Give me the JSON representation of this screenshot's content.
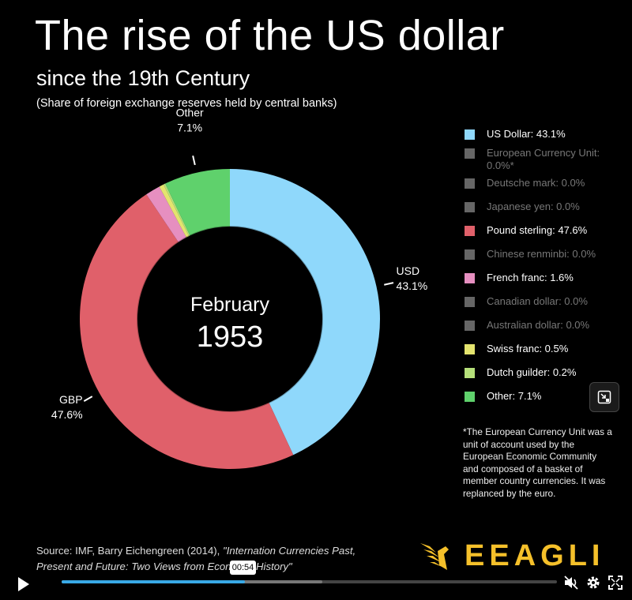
{
  "header": {
    "title": "The rise of the US dollar",
    "subtitle": "since the 19th Century",
    "note": "(Share of foreign exchange reserves held by central banks)"
  },
  "center": {
    "month": "February",
    "year": "1953"
  },
  "chart_data": {
    "type": "donut",
    "title": "The rise of the US dollar",
    "subtitle": "since the 19th Century",
    "order_clockwise_from_top": [
      "US Dollar",
      "Pound sterling",
      "French franc",
      "Swiss franc",
      "Dutch guilder",
      "Other"
    ],
    "series": [
      {
        "name": "US Dollar",
        "value": 43.1,
        "color": "#8fd8fb",
        "legend": "US Dollar: 43.1%",
        "active": true
      },
      {
        "name": "European Currency Unit",
        "value": 0.0,
        "color": "#666666",
        "legend": "European Currency Unit: 0.0%*",
        "active": false
      },
      {
        "name": "Deutsche mark",
        "value": 0.0,
        "color": "#666666",
        "legend": "Deutsche mark: 0.0%",
        "active": false
      },
      {
        "name": "Japanese yen",
        "value": 0.0,
        "color": "#666666",
        "legend": "Japanese yen: 0.0%",
        "active": false
      },
      {
        "name": "Pound sterling",
        "value": 47.6,
        "color": "#e0606a",
        "legend": "Pound sterling: 47.6%",
        "active": true
      },
      {
        "name": "Chinese renminbi",
        "value": 0.0,
        "color": "#666666",
        "legend": "Chinese renminbi: 0.0%",
        "active": false
      },
      {
        "name": "French franc",
        "value": 1.6,
        "color": "#e68fc0",
        "legend": "French franc: 1.6%",
        "active": true
      },
      {
        "name": "Canadian dollar",
        "value": 0.0,
        "color": "#666666",
        "legend": "Canadian dollar: 0.0%",
        "active": false
      },
      {
        "name": "Australian dollar",
        "value": 0.0,
        "color": "#666666",
        "legend": "Australian dollar: 0.0%",
        "active": false
      },
      {
        "name": "Swiss franc",
        "value": 0.5,
        "color": "#e4e46e",
        "legend": "Swiss franc: 0.5%",
        "active": true
      },
      {
        "name": "Dutch guilder",
        "value": 0.2,
        "color": "#b5e07a",
        "legend": "Dutch guilder: 0.2%",
        "active": true
      },
      {
        "name": "Other",
        "value": 7.1,
        "color": "#5fd16c",
        "legend": "Other: 7.1%",
        "active": true
      }
    ],
    "callouts": [
      {
        "series": "US Dollar",
        "label": "USD",
        "value_label": "43.1%"
      },
      {
        "series": "Pound sterling",
        "label": "GBP",
        "value_label": "47.6%"
      },
      {
        "series": "Other",
        "label": "Other",
        "value_label": "7.1%"
      }
    ]
  },
  "footnote": "*The European Currency Unit was a unit of account used by the European Economic Community and composed of a basket of member country currencies. It was replanced by the euro.",
  "source": {
    "line1_plain": "Source: IMF, Barry Eichengreen (2014), ",
    "line1_italic": "\"Internation Currencies Past,",
    "line2_italic": "Present and Future: Two Views from Economic History\""
  },
  "brand": {
    "name": "EEAGLI",
    "color": "#f5c02a"
  },
  "player": {
    "time_tooltip": "00:54",
    "progress": 0.37,
    "buffered": 0.53,
    "accent": "#39a9e6"
  },
  "icons": [
    "play-icon",
    "mute-icon",
    "settings-icon",
    "fullscreen-icon",
    "pip-icon",
    "eagle-logo-icon"
  ]
}
